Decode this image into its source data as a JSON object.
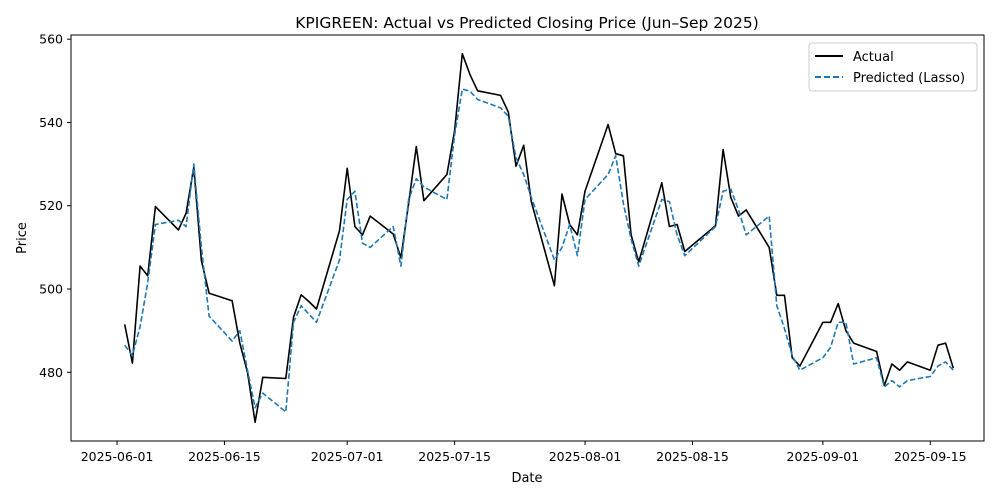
{
  "chart_data": {
    "type": "line",
    "title": "KPIGREEN: Actual vs Predicted Closing Price (Jun–Sep 2025)",
    "xlabel": "Date",
    "ylabel": "Price",
    "xlim": [
      "2025-05-26",
      "2025-09-22"
    ],
    "ylim": [
      463.5,
      561
    ],
    "x_ticks": [
      "2025-06-01",
      "2025-06-15",
      "2025-07-01",
      "2025-07-15",
      "2025-08-01",
      "2025-08-15",
      "2025-09-01",
      "2025-09-15"
    ],
    "y_ticks": [
      480,
      500,
      520,
      540,
      560
    ],
    "grid": false,
    "legend_position": "top-right",
    "x": [
      "2025-06-02",
      "2025-06-03",
      "2025-06-04",
      "2025-06-05",
      "2025-06-06",
      "2025-06-09",
      "2025-06-10",
      "2025-06-11",
      "2025-06-12",
      "2025-06-13",
      "2025-06-16",
      "2025-06-17",
      "2025-06-18",
      "2025-06-19",
      "2025-06-20",
      "2025-06-23",
      "2025-06-24",
      "2025-06-25",
      "2025-06-26",
      "2025-06-27",
      "2025-06-30",
      "2025-07-01",
      "2025-07-02",
      "2025-07-03",
      "2025-07-04",
      "2025-07-07",
      "2025-07-08",
      "2025-07-09",
      "2025-07-10",
      "2025-07-11",
      "2025-07-14",
      "2025-07-15",
      "2025-07-16",
      "2025-07-17",
      "2025-07-18",
      "2025-07-21",
      "2025-07-22",
      "2025-07-23",
      "2025-07-24",
      "2025-07-25",
      "2025-07-28",
      "2025-07-29",
      "2025-07-30",
      "2025-07-31",
      "2025-08-01",
      "2025-08-04",
      "2025-08-05",
      "2025-08-06",
      "2025-08-07",
      "2025-08-08",
      "2025-08-11",
      "2025-08-12",
      "2025-08-13",
      "2025-08-14",
      "2025-08-18",
      "2025-08-19",
      "2025-08-20",
      "2025-08-21",
      "2025-08-22",
      "2025-08-25",
      "2025-08-26",
      "2025-08-27",
      "2025-08-28",
      "2025-08-29",
      "2025-09-01",
      "2025-09-02",
      "2025-09-03",
      "2025-09-04",
      "2025-09-05",
      "2025-09-08",
      "2025-09-09",
      "2025-09-10",
      "2025-09-11",
      "2025-09-12",
      "2025-09-15",
      "2025-09-16",
      "2025-09-17",
      "2025-09-18"
    ],
    "series": [
      {
        "name": "Actual",
        "color": "#000000",
        "style": "solid",
        "values": [
          491.5,
          482.2,
          505.5,
          503.2,
          519.8,
          514.2,
          518.2,
          529.2,
          506.8,
          499.0,
          497.2,
          487.0,
          480.0,
          468.0,
          478.8,
          478.5,
          493.2,
          498.6,
          497.0,
          495.2,
          514.0,
          529.0,
          515.0,
          513.0,
          517.5,
          513.2,
          507.5,
          520.5,
          534.2,
          521.2,
          527.5,
          538.0,
          556.5,
          551.5,
          547.6,
          546.5,
          542.5,
          529.5,
          534.5,
          521.0,
          500.8,
          522.8,
          515.5,
          513.0,
          523.5,
          539.5,
          532.5,
          532.0,
          513.0,
          506.5,
          525.5,
          515.0,
          515.5,
          509.0,
          515.2,
          533.5,
          522.0,
          517.5,
          519.0,
          510.0,
          498.5,
          498.5,
          483.5,
          481.5,
          492.0,
          492.0,
          496.5,
          490.0,
          487.0,
          485.0,
          476.8,
          482.0,
          480.5,
          482.5,
          480.5,
          486.5,
          487.0,
          481.0
        ]
      },
      {
        "name": "Predicted (Lasso)",
        "color": "#1f77b4",
        "style": "dashed",
        "values": [
          486.5,
          484.0,
          491.0,
          501.5,
          515.5,
          516.5,
          515.0,
          530.0,
          510.0,
          493.5,
          487.5,
          490.0,
          480.5,
          471.5,
          475.0,
          470.5,
          492.0,
          496.0,
          494.0,
          492.0,
          507.0,
          521.5,
          523.5,
          511.0,
          510.0,
          515.0,
          505.5,
          521.5,
          526.5,
          524.5,
          521.5,
          537.0,
          548.0,
          547.5,
          545.5,
          543.5,
          541.5,
          531.5,
          527.5,
          522.0,
          507.0,
          510.0,
          515.5,
          508.0,
          521.5,
          527.5,
          532.0,
          520.5,
          512.0,
          505.5,
          521.5,
          521.0,
          513.0,
          508.0,
          515.0,
          523.5,
          524.0,
          519.0,
          513.0,
          517.5,
          496.0,
          490.5,
          484.0,
          480.5,
          483.5,
          486.0,
          492.0,
          492.0,
          482.0,
          483.5,
          476.5,
          478.0,
          476.5,
          478.0,
          479.0,
          481.5,
          482.5,
          480.5
        ]
      }
    ]
  }
}
